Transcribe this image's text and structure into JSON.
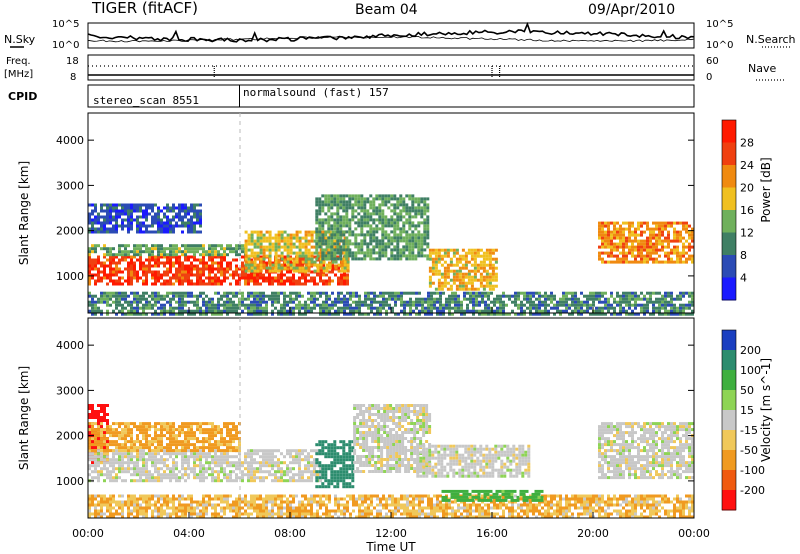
{
  "header": {
    "title": "TIGER (fitACF)",
    "beam": "Beam 04",
    "date": "09/Apr/2010"
  },
  "noise_panel": {
    "left_label": "N.Sky",
    "right_label": "N.Search",
    "left_ticks": [
      "10^5",
      "10^0"
    ],
    "right_ticks": [
      "10^5",
      "10^0"
    ]
  },
  "freq_panel": {
    "left_label_1": "Freq.",
    "left_label_2": "[MHz]",
    "right_label": "Nave",
    "left_ticks": [
      "18",
      "8"
    ],
    "right_ticks": [
      "60",
      "0"
    ]
  },
  "cpid_panel": {
    "label": "CPID",
    "entries": [
      {
        "name": "stereo_scan 8551",
        "start_h": 0
      },
      {
        "name": "normalsound (fast) 157",
        "start_h": 6
      }
    ]
  },
  "time_axis": {
    "label": "Time UT",
    "ticks": [
      "00:00",
      "04:00",
      "08:00",
      "12:00",
      "16:00",
      "20:00",
      "00:00"
    ],
    "range_h": [
      0,
      24
    ]
  },
  "range_axis": {
    "label": "Slant Range [km]",
    "ticks": [
      "1000",
      "2000",
      "3000",
      "4000"
    ],
    "range_km": [
      180,
      4600
    ]
  },
  "chart_data": [
    {
      "type": "heatmap",
      "parameter": "Power [dB]",
      "xlabel": "Time UT",
      "ylabel": "Slant Range [km]",
      "xlim_h": [
        0,
        24
      ],
      "ylim_km": [
        180,
        4600
      ],
      "colorbar": {
        "label": "Power [dB]",
        "ticks": [
          "4",
          "8",
          "12",
          "16",
          "20",
          "24",
          "28"
        ],
        "colors": [
          "#1a1aff",
          "#2b4bb5",
          "#3f7f64",
          "#6fb05c",
          "#f0c020",
          "#f08a10",
          "#f04010",
          "#ff1a00"
        ]
      },
      "regions": [
        {
          "t": [
            0.0,
            10.3
          ],
          "r": [
            850,
            1450
          ],
          "value": 27
        },
        {
          "t": [
            0.0,
            6.2
          ],
          "r": [
            1450,
            1700
          ],
          "value": 13
        },
        {
          "t": [
            6.2,
            10.3
          ],
          "r": [
            1100,
            2000
          ],
          "value": 18
        },
        {
          "t": [
            0.0,
            4.5
          ],
          "r": [
            2000,
            2600
          ],
          "value": 6
        },
        {
          "t": [
            9.0,
            13.5
          ],
          "r": [
            1400,
            2800
          ],
          "value": 12
        },
        {
          "t": [
            13.5,
            16.2
          ],
          "r": [
            700,
            1600
          ],
          "value": 19
        },
        {
          "t": [
            20.2,
            24.0
          ],
          "r": [
            1300,
            2200
          ],
          "value": 22
        },
        {
          "t": [
            0.0,
            24.0
          ],
          "r": [
            180,
            650
          ],
          "value": 10
        }
      ]
    },
    {
      "type": "heatmap",
      "parameter": "Velocity [m s^-1]",
      "xlabel": "Time UT",
      "ylabel": "Slant Range [km]",
      "xlim_h": [
        0,
        24
      ],
      "ylim_km": [
        180,
        4600
      ],
      "colorbar": {
        "label": "Velocity [m s^-1]",
        "ticks": [
          "200",
          "100",
          "50",
          "15",
          "-15",
          "-50",
          "-100",
          "-200"
        ],
        "colors": [
          "#1a3fc0",
          "#2c8c6e",
          "#3faf3f",
          "#8ed455",
          "#c8c8c8",
          "#f0c85a",
          "#f09a20",
          "#f05a10",
          "#ff1010"
        ]
      },
      "regions": [
        {
          "t": [
            0.0,
            0.8
          ],
          "r": [
            1400,
            2700
          ],
          "value": -200
        },
        {
          "t": [
            0.0,
            9.2
          ],
          "r": [
            1000,
            1700
          ],
          "value": 0
        },
        {
          "t": [
            0.0,
            6.0
          ],
          "r": [
            1700,
            2300
          ],
          "value": -40
        },
        {
          "t": [
            9.0,
            10.5
          ],
          "r": [
            900,
            1900
          ],
          "value": 150
        },
        {
          "t": [
            10.5,
            13.5
          ],
          "r": [
            1200,
            2700
          ],
          "value": 0
        },
        {
          "t": [
            13.0,
            17.5
          ],
          "r": [
            1100,
            1800
          ],
          "value": 0
        },
        {
          "t": [
            20.2,
            24.0
          ],
          "r": [
            1100,
            2300
          ],
          "value": 0
        },
        {
          "t": [
            0.0,
            24.0
          ],
          "r": [
            180,
            700
          ],
          "value": -30
        },
        {
          "t": [
            14.0,
            18.0
          ],
          "r": [
            550,
            800
          ],
          "value": 50
        }
      ]
    }
  ]
}
